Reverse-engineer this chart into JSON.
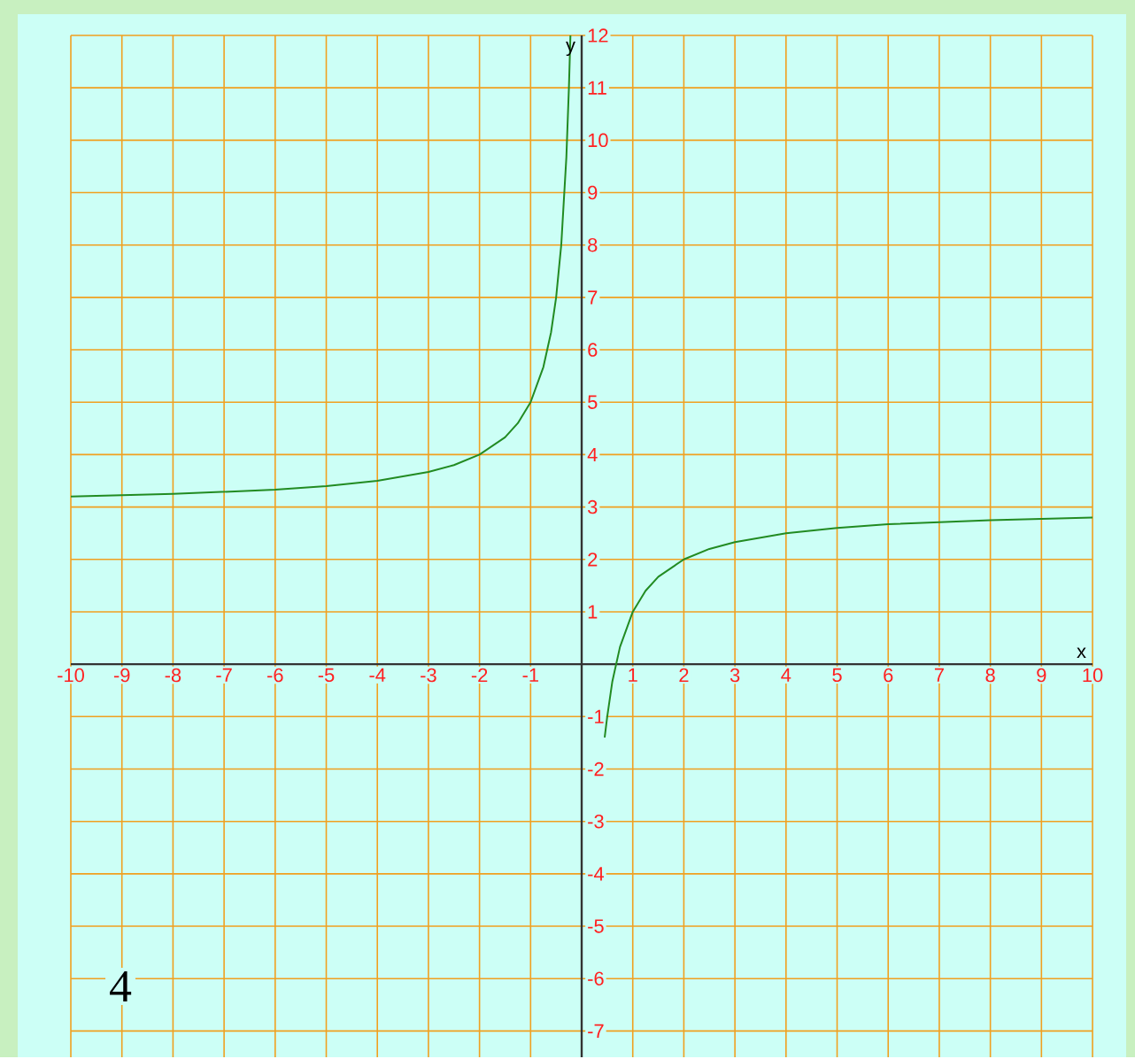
{
  "chart_data": {
    "type": "line",
    "xlabel": "x",
    "ylabel": "y",
    "xlim": [
      -10,
      10
    ],
    "ylim": [
      -7.5,
      12
    ],
    "xticks": [
      -10,
      -9,
      -8,
      -7,
      -6,
      -5,
      -4,
      -3,
      -2,
      -1,
      1,
      2,
      3,
      4,
      5,
      6,
      7,
      8,
      9,
      10
    ],
    "yticks": [
      -7,
      -6,
      -5,
      -4,
      -3,
      -2,
      -1,
      1,
      2,
      3,
      4,
      5,
      6,
      7,
      8,
      9,
      10,
      11,
      12
    ],
    "grid": true,
    "series": [
      {
        "color": "#228b22",
        "x": [
          -10,
          -8,
          -6,
          -5,
          -4,
          -3,
          -2.5,
          -2,
          -1.5,
          -1.25,
          -1,
          -0.75,
          -0.6,
          -0.5,
          -0.4,
          -0.3,
          -0.25,
          -0.22,
          0,
          0.45,
          0.5,
          0.6,
          0.75,
          1,
          1.25,
          1.5,
          2,
          2.5,
          3,
          4,
          5,
          6,
          8,
          10
        ],
        "values": [
          3.2,
          3.25,
          3.33,
          3.4,
          3.5,
          3.67,
          3.8,
          4,
          4.33,
          4.6,
          5,
          5.67,
          6.33,
          7,
          8,
          9.67,
          11,
          12,
          null,
          -1.4,
          -1,
          -0.33,
          0.33,
          1,
          1.4,
          1.67,
          2,
          2.2,
          2.33,
          2.5,
          2.6,
          2.67,
          2.75,
          2.8
        ]
      }
    ],
    "annotations": [
      "4"
    ]
  }
}
